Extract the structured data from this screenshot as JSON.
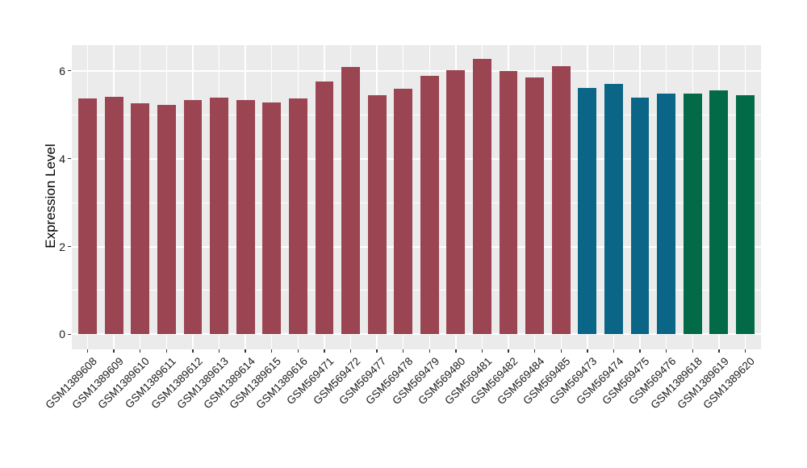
{
  "chart_data": {
    "type": "bar",
    "title": "",
    "xlabel": "",
    "ylabel": "Expression Level",
    "categories": [
      "GSM1389608",
      "GSM1389609",
      "GSM1389610",
      "GSM1389611",
      "GSM1389612",
      "GSM1389613",
      "GSM1389614",
      "GSM1389615",
      "GSM1389616",
      "GSM569471",
      "GSM569472",
      "GSM569477",
      "GSM569478",
      "GSM569479",
      "GSM569480",
      "GSM569481",
      "GSM569482",
      "GSM569484",
      "GSM569485",
      "GSM569473",
      "GSM569474",
      "GSM569475",
      "GSM569476",
      "GSM1389618",
      "GSM1389619",
      "GSM1389620"
    ],
    "values": [
      5.36,
      5.4,
      5.25,
      5.23,
      5.33,
      5.39,
      5.33,
      5.28,
      5.36,
      5.75,
      6.09,
      5.45,
      5.59,
      5.89,
      6.02,
      6.26,
      5.99,
      5.84,
      6.11,
      5.6,
      5.7,
      5.38,
      5.48,
      5.47,
      5.55,
      5.45
    ],
    "bar_groups": [
      0,
      0,
      0,
      0,
      0,
      0,
      0,
      0,
      0,
      0,
      0,
      0,
      0,
      0,
      0,
      0,
      0,
      0,
      0,
      1,
      1,
      1,
      1,
      2,
      2,
      2
    ],
    "group_colors": [
      "#9B4552",
      "#0B6586",
      "#026A47"
    ],
    "yticks": [
      0,
      2,
      4,
      6
    ],
    "yticks_minor": [
      1,
      3,
      5
    ],
    "ylim": [
      -0.34,
      6.58
    ],
    "xticklabel_angle": 45,
    "grid": true,
    "legend": "none",
    "panel_bg": "#EBEBEB",
    "grid_color": "#FFFFFF",
    "tick_color": "#333333",
    "text_color": "#1A1A1A"
  }
}
